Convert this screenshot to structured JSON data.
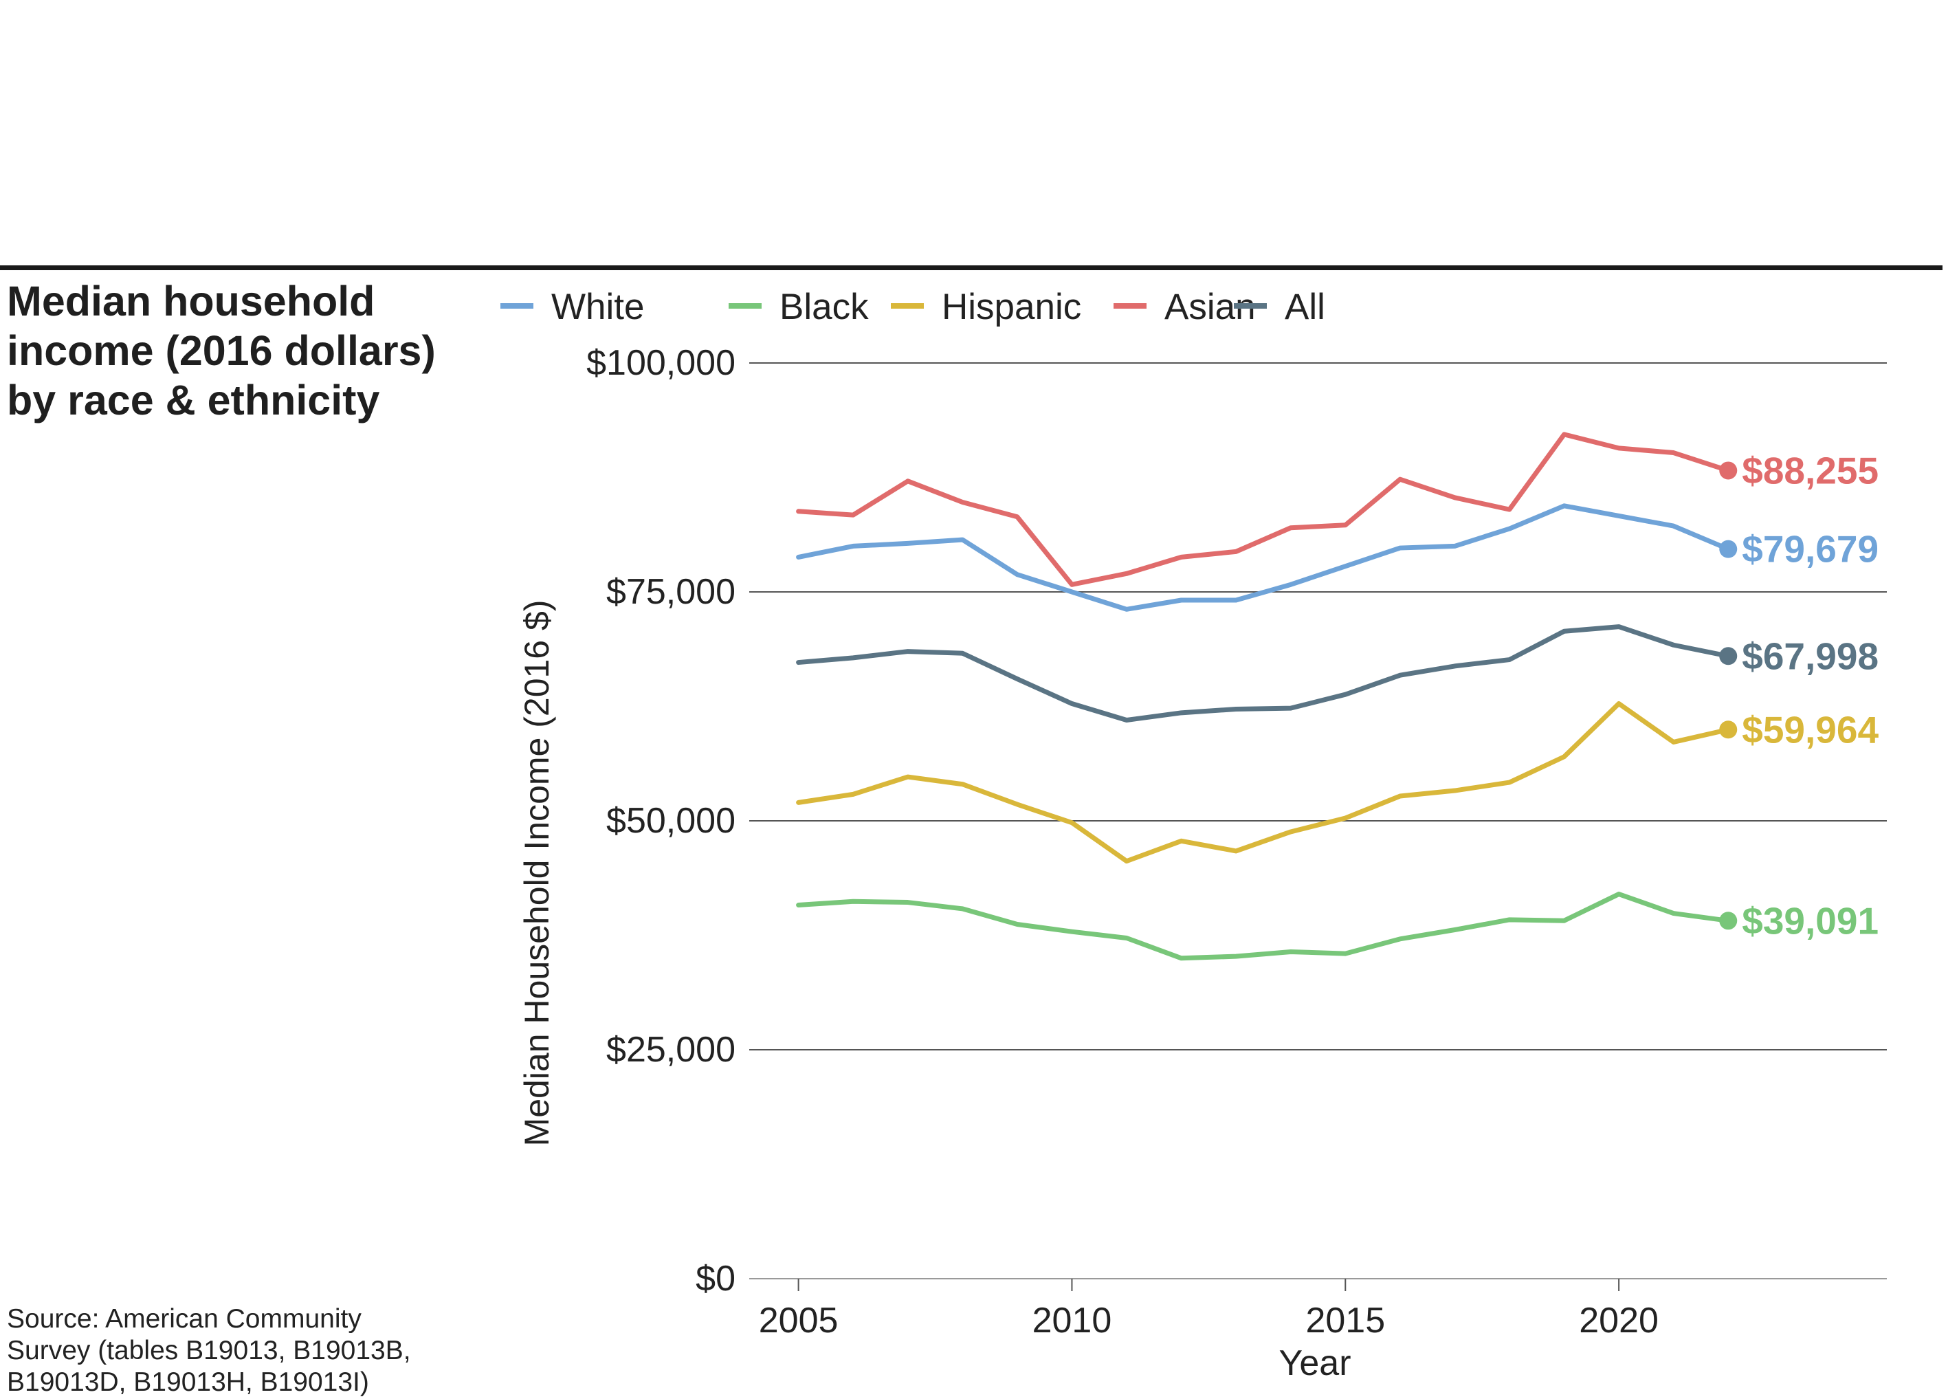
{
  "sidebar": {
    "title_lines": [
      "Median household",
      "income (2016 dollars)",
      "by race & ethnicity"
    ],
    "source_lines": [
      "Source: American Community",
      "Survey (tables B19013, B19013B,",
      "B19013D, B19013H, B19013I)"
    ]
  },
  "chart_data": {
    "type": "line",
    "xlabel": "Year",
    "ylabel": "Median Household Income (2016 $)",
    "x": [
      2005,
      2006,
      2007,
      2008,
      2009,
      2010,
      2011,
      2012,
      2013,
      2014,
      2015,
      2016,
      2017,
      2018,
      2019,
      2020,
      2021,
      2022
    ],
    "xlim": [
      2004.1,
      2024.9
    ],
    "ylim": [
      0,
      100000
    ],
    "x_ticks": [
      2005,
      2010,
      2015,
      2020
    ],
    "x_tick_labels": [
      "2005",
      "2010",
      "2015",
      "2020"
    ],
    "y_ticks": [
      0,
      25000,
      50000,
      75000,
      100000
    ],
    "y_tick_labels": [
      "$0",
      "$25,000",
      "$50,000",
      "$75,000",
      "$100,000"
    ],
    "grid": "horizontal",
    "legend": "top",
    "series": [
      {
        "name": "White",
        "color": "#6fa3d8",
        "end_label": "$79,679",
        "values": [
          78800,
          80000,
          80300,
          80700,
          76900,
          75000,
          73100,
          74100,
          74100,
          75800,
          77800,
          79800,
          80000,
          81900,
          84400,
          83300,
          82200,
          79679
        ]
      },
      {
        "name": "Black",
        "color": "#78c679",
        "end_label": "$39,091",
        "values": [
          40800,
          41200,
          41100,
          40400,
          38700,
          37900,
          37200,
          35000,
          35200,
          35700,
          35500,
          37100,
          38100,
          39200,
          39100,
          42000,
          39900,
          39091
        ]
      },
      {
        "name": "Hispanic",
        "color": "#d9b73a",
        "end_label": "$59,964",
        "values": [
          52000,
          52900,
          54800,
          54000,
          51800,
          49800,
          45600,
          47800,
          46700,
          48800,
          50300,
          52700,
          53300,
          54200,
          57000,
          62800,
          58600,
          59964
        ]
      },
      {
        "name": "Asian",
        "color": "#e06b6b",
        "end_label": "$88,255",
        "values": [
          83800,
          83400,
          87100,
          84800,
          83200,
          75800,
          77000,
          78800,
          79400,
          82000,
          82300,
          87300,
          85300,
          84000,
          92200,
          90700,
          90200,
          88255
        ]
      },
      {
        "name": "All",
        "color": "#5a7484",
        "end_label": "$67,998",
        "values": [
          67300,
          67800,
          68500,
          68300,
          65500,
          62800,
          61000,
          61800,
          62200,
          62300,
          63800,
          65900,
          66900,
          67600,
          70700,
          71200,
          69200,
          67998
        ]
      }
    ]
  }
}
